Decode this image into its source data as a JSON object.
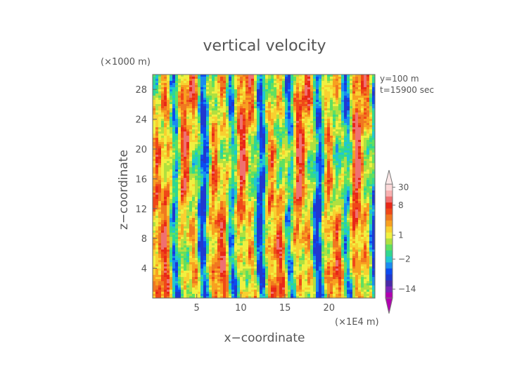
{
  "chart_data": {
    "type": "heatmap",
    "title": "vertical velocity",
    "xlabel": "x−coordinate",
    "ylabel": "z−coordinate",
    "x_unit": "(×1E4 m)",
    "y_unit": "(×1000 m)",
    "xlim": [
      0,
      25.2
    ],
    "ylim": [
      0,
      30
    ],
    "x_ticks": [
      5,
      10,
      15,
      20
    ],
    "y_ticks": [
      4,
      8,
      12,
      16,
      20,
      24,
      28
    ],
    "grid": false,
    "annotations": [
      "y=100 m",
      "t=15900 sec"
    ],
    "colorbar": {
      "tick_labels": [
        "30",
        "8",
        "1",
        "−2",
        "−14"
      ],
      "tick_values": [
        30,
        8,
        1,
        -2,
        -14
      ],
      "levels": [
        {
          "color": "#b000b0"
        },
        {
          "color": "#7a24b8"
        },
        {
          "color": "#4a2aa8"
        },
        {
          "color": "#2038d0"
        },
        {
          "color": "#0c4cf0"
        },
        {
          "color": "#1a8cf0"
        },
        {
          "color": "#20c8d0"
        },
        {
          "color": "#30d890"
        },
        {
          "color": "#60e060"
        },
        {
          "color": "#b0e040"
        },
        {
          "color": "#f0f040"
        },
        {
          "color": "#f8d030"
        },
        {
          "color": "#f8a020"
        },
        {
          "color": "#f07820"
        },
        {
          "color": "#f04818"
        },
        {
          "color": "#e82818"
        },
        {
          "color": "#f07070"
        },
        {
          "color": "#f8b0b0"
        },
        {
          "color": "#fcd8d8"
        }
      ]
    }
  }
}
